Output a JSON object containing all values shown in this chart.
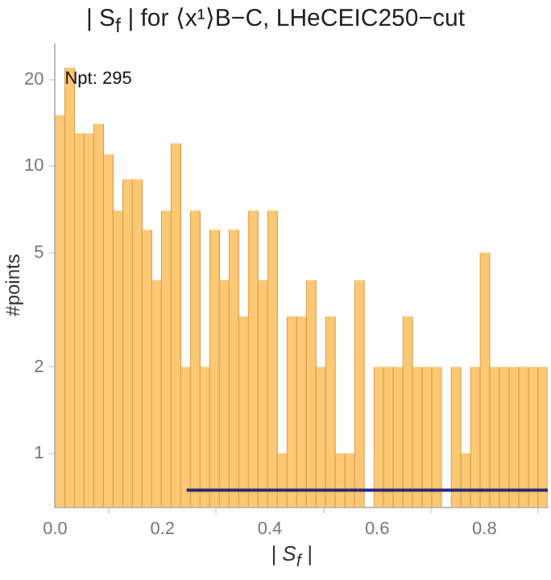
{
  "chart_data": {
    "type": "histogram",
    "title": "| S$_{f}$ | for ⟨x¹⟩B−C, LHeCEIC250−cut",
    "xlabel": "| S$_{f}$ |",
    "ylabel": "#points",
    "bins": [
      0,
      0.018,
      0.036,
      0.054,
      0.072,
      0.09,
      0.108,
      0.126,
      0.144,
      0.162,
      0.18,
      0.198,
      0.216,
      0.234,
      0.252,
      0.27,
      0.288,
      0.306,
      0.324,
      0.342,
      0.36,
      0.378,
      0.396,
      0.414,
      0.432,
      0.45,
      0.468,
      0.486,
      0.504,
      0.522,
      0.54,
      0.558,
      0.576,
      0.594,
      0.612,
      0.63,
      0.648,
      0.666,
      0.684,
      0.702,
      0.72,
      0.738,
      0.756,
      0.774,
      0.792,
      0.81,
      0.828,
      0.846,
      0.864,
      0.882,
      0.9,
      0.918
    ],
    "values": [
      15,
      22,
      13,
      13,
      14,
      11,
      7,
      9,
      9,
      6,
      4,
      7,
      12,
      2,
      7,
      2,
      6,
      4,
      6,
      3,
      7,
      4,
      7,
      1,
      3,
      3,
      4,
      2,
      3,
      1,
      1,
      4,
      null,
      2,
      2,
      2,
      3,
      2,
      2,
      2,
      null,
      2,
      1,
      2,
      5,
      2,
      2,
      2,
      2,
      2,
      2
    ],
    "color": "#fcc874",
    "series": [
      {
        "type": "line",
        "x": [
          0.245,
          0.918
        ],
        "values": [
          0.745,
          0.745
        ],
        "color": "#2a2878"
      }
    ],
    "log": "y",
    "xlim": [
      0,
      0.918
    ],
    "ylim": [
      0.65,
      26.5
    ],
    "xticks": [
      {
        "value": 0,
        "label": "0.0"
      },
      {
        "value": 0.2,
        "label": "0.2"
      },
      {
        "value": 0.4,
        "label": "0.4"
      },
      {
        "value": 0.6,
        "label": "0.6"
      },
      {
        "value": 0.8,
        "label": "0.8"
      }
    ],
    "yticks": [
      1,
      2,
      5,
      10,
      20
    ],
    "annotations": [
      "Npt: 295"
    ]
  }
}
